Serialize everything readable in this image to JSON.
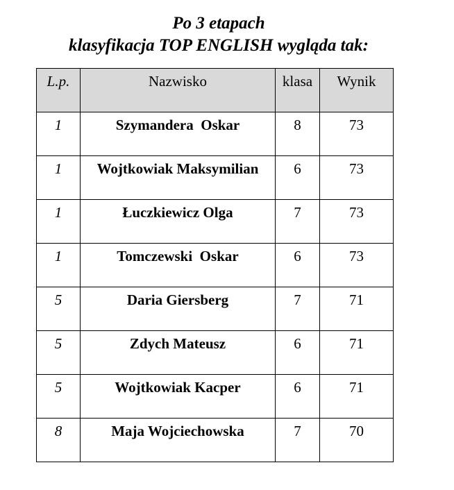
{
  "title": {
    "line1": "Po 3 etapach",
    "line2": "klasyfikacja TOP ENGLISH wygląda tak:"
  },
  "table": {
    "header": [
      "L.p.",
      "Nazwisko",
      "klasa",
      "Wynik"
    ],
    "rows": [
      [
        1,
        "Szymandera  Oskar",
        8,
        73
      ],
      [
        1,
        "Wojtkowiak Maksymilian",
        6,
        73
      ],
      [
        1,
        "Łuczkiewicz Olga",
        7,
        73
      ],
      [
        1,
        "Tomczewski  Oskar",
        6,
        73
      ],
      [
        5,
        "Daria Giersberg",
        7,
        71
      ],
      [
        5,
        "Zdych Mateusz",
        6,
        71
      ],
      [
        5,
        "Wojtkowiak Kacper",
        6,
        71
      ],
      [
        8,
        "Maja Wojciechowska",
        7,
        70
      ]
    ]
  }
}
